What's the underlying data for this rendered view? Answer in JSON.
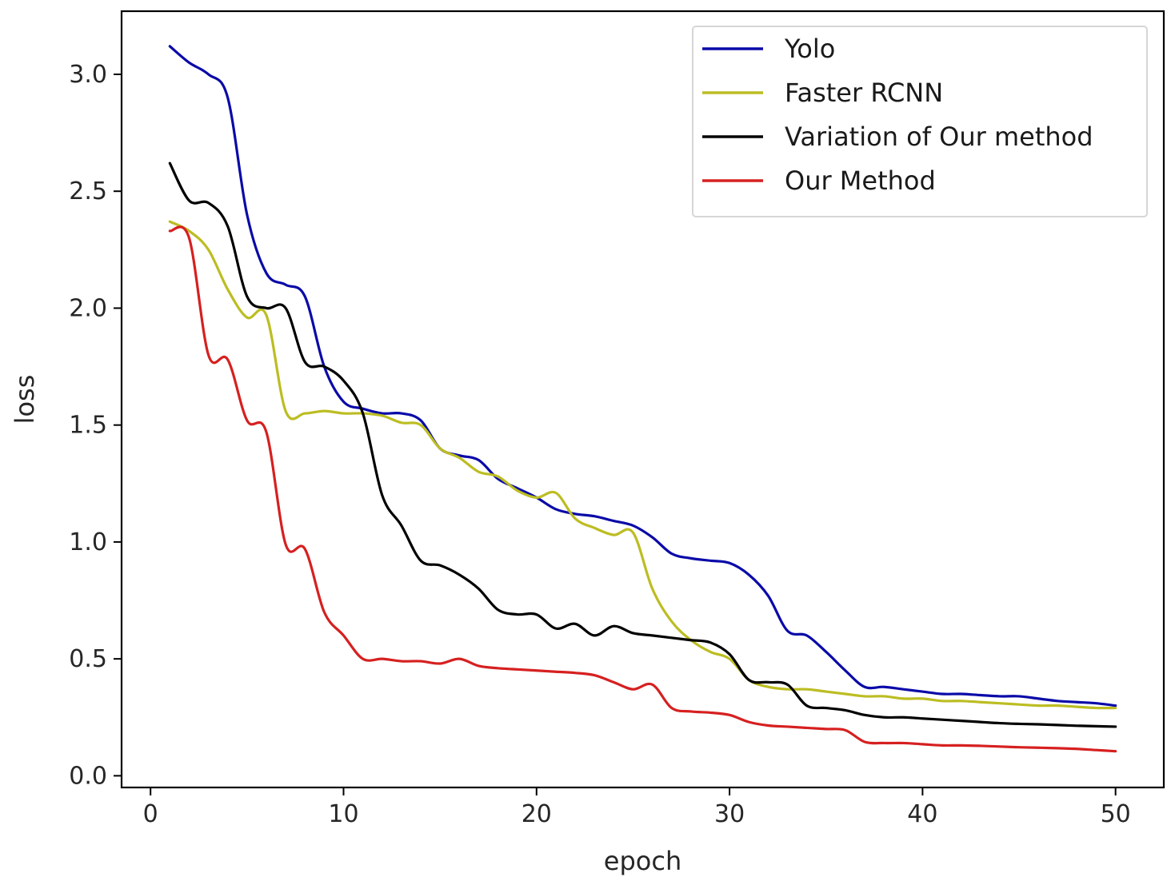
{
  "chart_data": {
    "type": "line",
    "title": "",
    "xlabel": "epoch",
    "ylabel": "loss",
    "xlim": [
      -1.5,
      52.5
    ],
    "ylim": [
      -0.05,
      3.27
    ],
    "xticks": [
      0,
      10,
      20,
      30,
      40,
      50
    ],
    "yticks": [
      0.0,
      0.5,
      1.0,
      1.5,
      2.0,
      2.5,
      3.0
    ],
    "xtick_labels": [
      "0",
      "10",
      "20",
      "30",
      "40",
      "50"
    ],
    "ytick_labels": [
      "0.0",
      "0.5",
      "1.0",
      "1.5",
      "2.0",
      "2.5",
      "3.0"
    ],
    "grid": false,
    "legend_position": "top-right",
    "x": [
      1,
      2,
      3,
      4,
      5,
      6,
      7,
      8,
      9,
      10,
      11,
      12,
      13,
      14,
      15,
      16,
      17,
      18,
      19,
      20,
      21,
      22,
      23,
      24,
      25,
      26,
      27,
      28,
      29,
      30,
      31,
      32,
      33,
      34,
      35,
      36,
      37,
      38,
      39,
      40,
      41,
      42,
      43,
      44,
      45,
      46,
      47,
      48,
      49,
      50
    ],
    "series": [
      {
        "name": "Yolo",
        "color": "#0a0aa8",
        "values": [
          3.12,
          3.05,
          3.0,
          2.9,
          2.4,
          2.15,
          2.1,
          2.05,
          1.75,
          1.6,
          1.57,
          1.55,
          1.55,
          1.52,
          1.4,
          1.37,
          1.35,
          1.27,
          1.23,
          1.19,
          1.14,
          1.12,
          1.11,
          1.09,
          1.07,
          1.02,
          0.95,
          0.93,
          0.92,
          0.91,
          0.86,
          0.77,
          0.62,
          0.6,
          0.53,
          0.45,
          0.38,
          0.38,
          0.37,
          0.36,
          0.35,
          0.35,
          0.345,
          0.34,
          0.34,
          0.33,
          0.32,
          0.315,
          0.31,
          0.3
        ]
      },
      {
        "name": "Faster RCNN",
        "color": "#bcbd22",
        "values": [
          2.37,
          2.33,
          2.25,
          2.08,
          1.96,
          1.97,
          1.56,
          1.55,
          1.56,
          1.55,
          1.55,
          1.54,
          1.51,
          1.5,
          1.4,
          1.36,
          1.3,
          1.28,
          1.22,
          1.19,
          1.21,
          1.1,
          1.06,
          1.03,
          1.04,
          0.8,
          0.66,
          0.58,
          0.53,
          0.5,
          0.41,
          0.38,
          0.37,
          0.37,
          0.36,
          0.35,
          0.34,
          0.34,
          0.33,
          0.33,
          0.32,
          0.32,
          0.315,
          0.31,
          0.305,
          0.3,
          0.3,
          0.295,
          0.29,
          0.29
        ]
      },
      {
        "name": "Variation of Our method",
        "color": "#000000",
        "values": [
          2.62,
          2.46,
          2.45,
          2.35,
          2.05,
          2.0,
          2.0,
          1.77,
          1.75,
          1.69,
          1.55,
          1.2,
          1.07,
          0.92,
          0.9,
          0.86,
          0.8,
          0.71,
          0.69,
          0.69,
          0.63,
          0.65,
          0.6,
          0.64,
          0.61,
          0.6,
          0.59,
          0.58,
          0.57,
          0.52,
          0.41,
          0.4,
          0.39,
          0.3,
          0.29,
          0.28,
          0.26,
          0.25,
          0.25,
          0.245,
          0.24,
          0.235,
          0.23,
          0.225,
          0.222,
          0.22,
          0.217,
          0.214,
          0.212,
          0.21
        ]
      },
      {
        "name": "Our Method",
        "color": "#d62020",
        "values": [
          2.33,
          2.3,
          1.8,
          1.78,
          1.52,
          1.47,
          0.99,
          0.97,
          0.7,
          0.6,
          0.5,
          0.5,
          0.49,
          0.49,
          0.48,
          0.5,
          0.47,
          0.46,
          0.455,
          0.45,
          0.445,
          0.44,
          0.43,
          0.4,
          0.37,
          0.39,
          0.29,
          0.275,
          0.27,
          0.26,
          0.23,
          0.215,
          0.21,
          0.205,
          0.2,
          0.195,
          0.145,
          0.14,
          0.14,
          0.135,
          0.13,
          0.13,
          0.128,
          0.125,
          0.122,
          0.12,
          0.118,
          0.115,
          0.11,
          0.105
        ]
      }
    ]
  }
}
